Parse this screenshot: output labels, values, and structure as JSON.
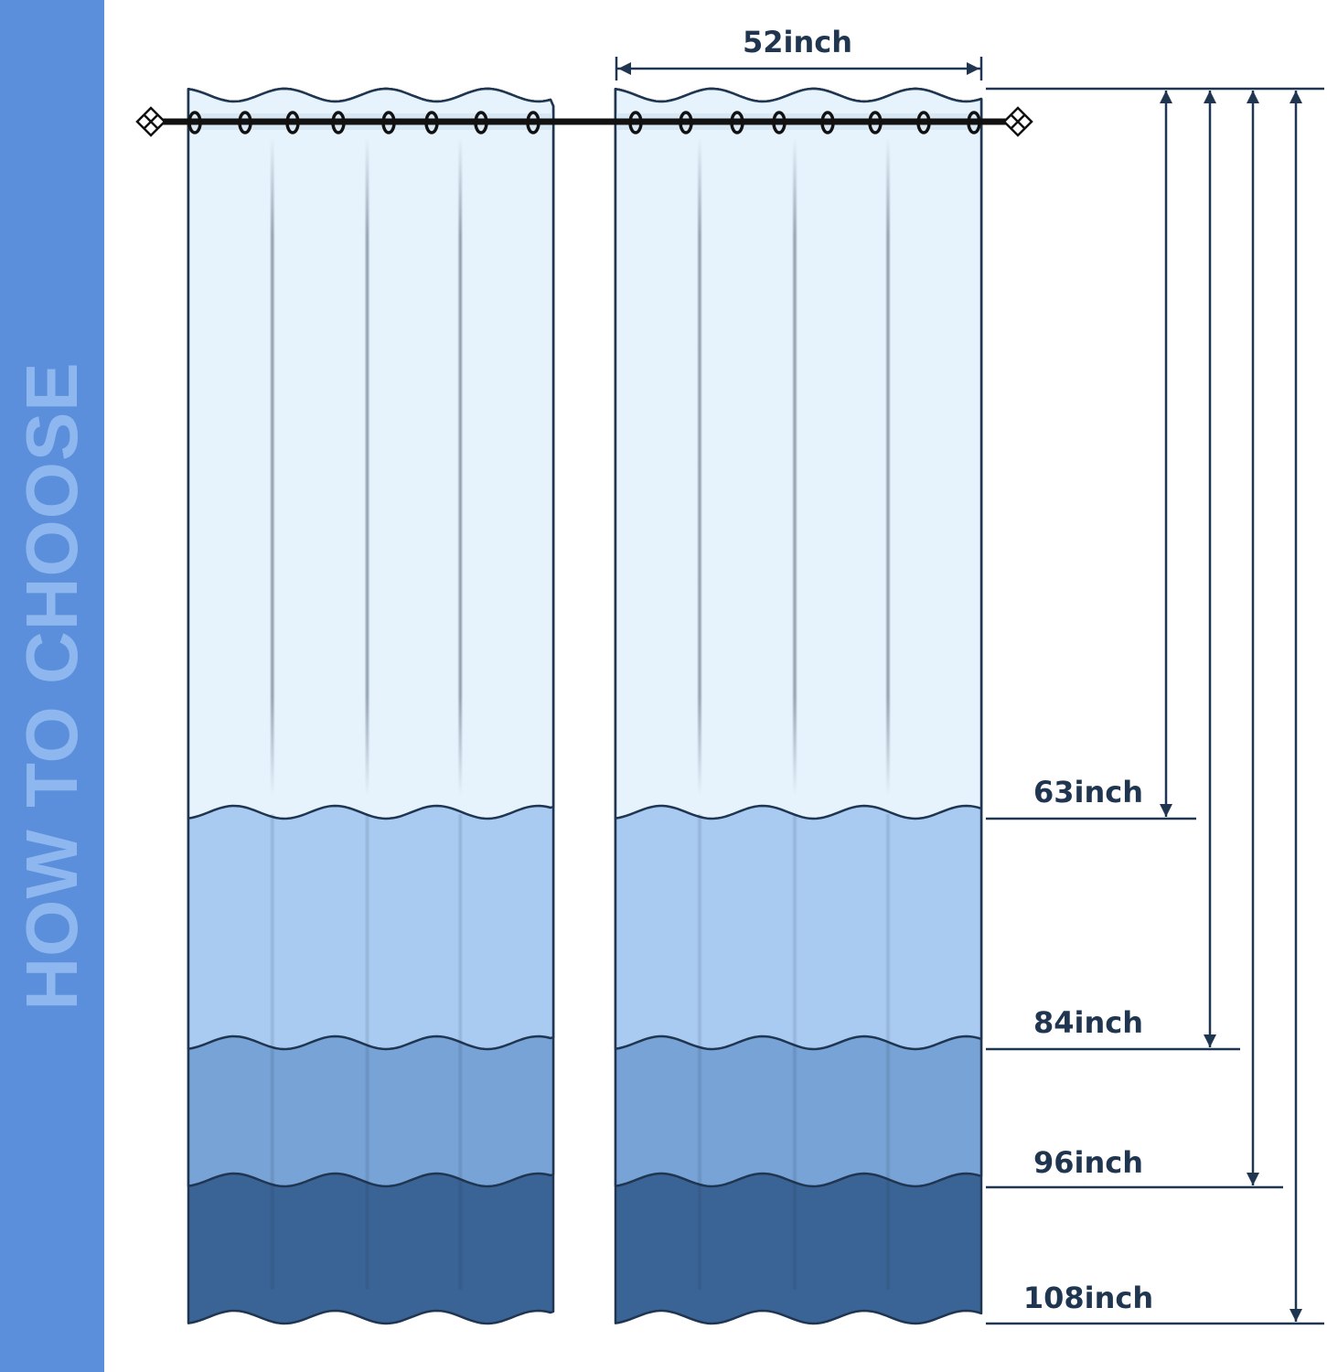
{
  "side_title": "HOW TO CHOOSE",
  "width_label": "52inch",
  "length_labels": [
    "63inch",
    "84inch",
    "96inch",
    "108inch"
  ],
  "colors": {
    "sidebar": "#5b8fdb",
    "band_63": "#e6f3fd",
    "band_84": "#a9cbf2",
    "band_96": "#77a3d6",
    "band_108": "#3b6496",
    "outline": "#1f3550"
  },
  "icons": [
    "curtain-rod-icon",
    "finial-icon",
    "grommet-icon",
    "dimension-arrow-icon"
  ]
}
